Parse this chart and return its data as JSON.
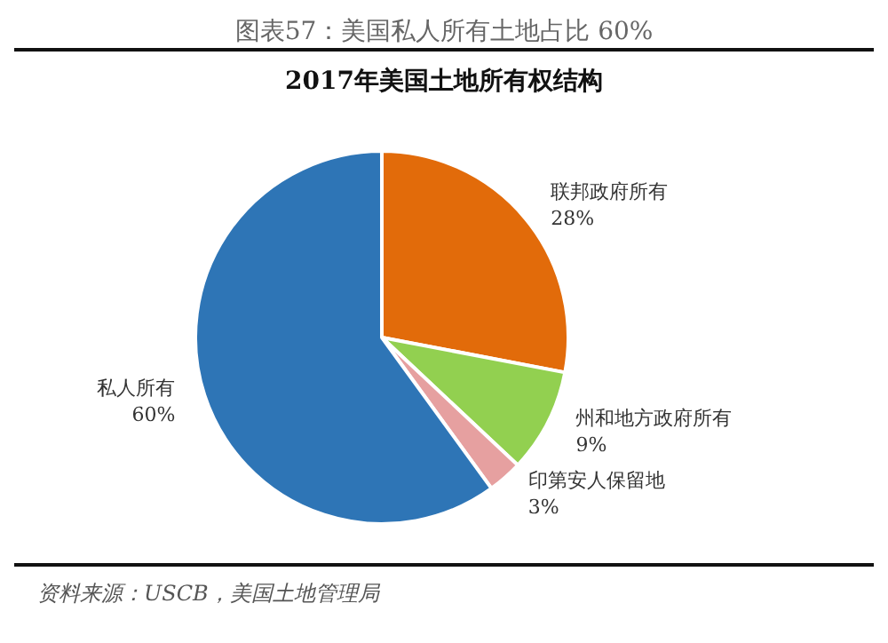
{
  "chart_data": {
    "type": "pie",
    "title": "图表57：美国私人所有土地占比 60%",
    "subtitle": "2017年美国土地所有权结构",
    "categories": [
      "联邦政府所有",
      "州和地方政府所有",
      "印第安人保留地",
      "私人所有"
    ],
    "values": [
      28,
      9,
      3,
      60
    ],
    "colors": [
      "#e26b0a",
      "#92d050",
      "#e6a0a0",
      "#2e75b6"
    ],
    "value_labels": [
      "28%",
      "9%",
      "3%",
      "60%"
    ],
    "legend": false,
    "annotations": [
      "资料来源：USCB，美国土地管理局"
    ]
  }
}
